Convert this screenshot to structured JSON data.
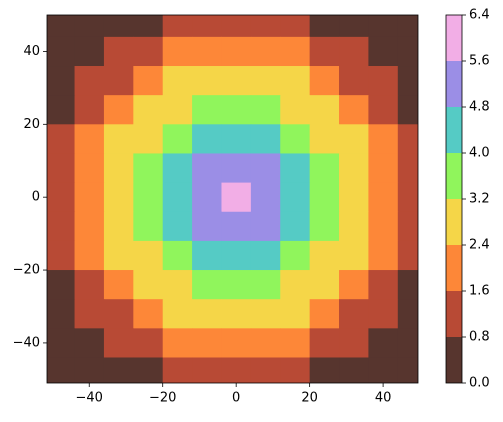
{
  "chart_data": {
    "type": "contourf",
    "x": [
      -48,
      -40,
      -32,
      -24,
      -16,
      -8,
      0,
      8,
      16,
      24,
      32,
      40,
      48
    ],
    "y": [
      48,
      40,
      32,
      24,
      16,
      8,
      0,
      -8,
      -16,
      -24,
      -32,
      -40,
      -48
    ],
    "z": [
      [
        0.05,
        0.1,
        0.25,
        0.6,
        0.9,
        1.1,
        1.25,
        1.15,
        0.95,
        0.65,
        0.2,
        0.12,
        0.05
      ],
      [
        0.12,
        0.35,
        0.85,
        1.3,
        1.7,
        1.95,
        2.05,
        1.9,
        1.65,
        1.35,
        0.9,
        0.3,
        0.1
      ],
      [
        0.2,
        0.9,
        1.45,
        2.05,
        2.45,
        2.7,
        2.85,
        2.65,
        2.4,
        1.95,
        1.5,
        0.85,
        0.25
      ],
      [
        0.65,
        1.3,
        2.0,
        2.6,
        3.15,
        3.5,
        3.6,
        3.45,
        3.1,
        2.65,
        1.95,
        1.35,
        0.6
      ],
      [
        0.95,
        1.7,
        2.45,
        3.1,
        3.75,
        4.2,
        4.45,
        4.25,
        3.7,
        3.15,
        2.4,
        1.65,
        0.9
      ],
      [
        1.15,
        1.9,
        2.7,
        3.5,
        4.25,
        4.9,
        5.3,
        4.85,
        4.2,
        3.45,
        2.75,
        1.95,
        1.1
      ],
      [
        1.2,
        2.0,
        2.8,
        3.6,
        4.4,
        5.2,
        6.0,
        5.25,
        4.45,
        3.55,
        2.85,
        2.05,
        1.25
      ],
      [
        1.1,
        1.95,
        2.65,
        3.45,
        4.2,
        4.85,
        5.15,
        4.9,
        4.25,
        3.5,
        2.7,
        1.9,
        1.15
      ],
      [
        0.9,
        1.65,
        2.4,
        3.15,
        3.7,
        4.2,
        4.35,
        4.2,
        3.75,
        3.1,
        2.45,
        1.7,
        0.95
      ],
      [
        0.6,
        1.35,
        1.95,
        2.6,
        3.1,
        3.45,
        3.6,
        3.5,
        3.15,
        2.6,
        2.05,
        1.3,
        0.65
      ],
      [
        0.25,
        0.85,
        1.5,
        1.95,
        2.4,
        2.7,
        2.8,
        2.7,
        2.45,
        2.0,
        1.45,
        0.9,
        0.2
      ],
      [
        0.1,
        0.3,
        0.9,
        1.35,
        1.7,
        1.9,
        2.0,
        1.95,
        1.7,
        1.3,
        0.85,
        0.35,
        0.12
      ],
      [
        0.05,
        0.12,
        0.2,
        0.65,
        0.95,
        1.1,
        1.2,
        1.15,
        0.9,
        0.6,
        0.25,
        0.1,
        0.05
      ]
    ],
    "levels": [
      {
        "value": 0,
        "label": "0.0"
      },
      0.8,
      1.6,
      2.4,
      3.2,
      {
        "value": 4,
        "label": "4.0"
      },
      4.8,
      5.6,
      6.4
    ],
    "colors": [
      "#57352e",
      "#b84a35",
      "#fd8738",
      "#f5d648",
      "#90f55c",
      "#55cbc5",
      "#9b8ee6",
      "#f2aee6"
    ],
    "xlim": [
      -51.5,
      49.5
    ],
    "ylim": [
      -51,
      50
    ],
    "xticks": [
      {
        "value": -40,
        "label": "−40"
      },
      {
        "value": -20,
        "label": "−20"
      },
      0,
      20,
      40
    ],
    "yticks": [
      {
        "value": -40,
        "label": "−40"
      },
      {
        "value": -20,
        "label": "−20"
      },
      0,
      20,
      40
    ]
  }
}
